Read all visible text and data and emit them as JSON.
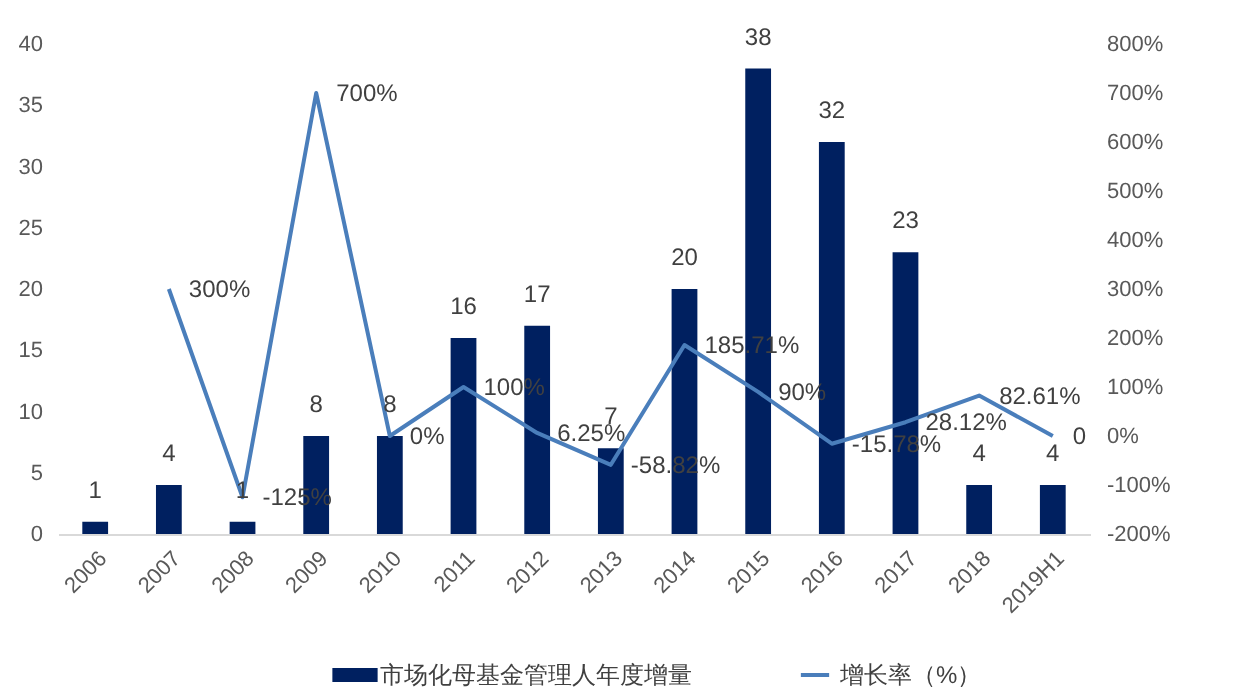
{
  "chart_data": {
    "type": "bar",
    "categories": [
      "2006",
      "2007",
      "2008",
      "2009",
      "2010",
      "2011",
      "2012",
      "2013",
      "2014",
      "2015",
      "2016",
      "2017",
      "2018",
      "2019H1"
    ],
    "series": [
      {
        "name": "市场化母基金管理人年度增量",
        "color": "#002060",
        "values": [
          1,
          4,
          1,
          8,
          8,
          16,
          17,
          7,
          20,
          38,
          32,
          23,
          4,
          4
        ]
      },
      {
        "name": "增长率（%）",
        "type": "line",
        "axis": "y2",
        "color": "#4a7ebb",
        "values": [
          null,
          300,
          -125,
          700,
          0,
          100,
          6.25,
          -58.82,
          185.71,
          90,
          -15.78,
          28.12,
          82.61,
          0
        ],
        "value_labels": [
          null,
          "300%",
          "-125%",
          "700%",
          "0%",
          "100%",
          "6.25%",
          "-58.82%",
          "185.71%",
          "90%",
          "-15.78%",
          "28.12%",
          "82.61%",
          "0"
        ]
      }
    ],
    "ylim": [
      0,
      40
    ],
    "yticks": [
      0,
      5,
      10,
      15,
      20,
      25,
      30,
      35,
      40
    ],
    "y2lim": [
      -200,
      800
    ],
    "y2ticks": [
      {
        "value": -200,
        "label": "-200%"
      },
      {
        "value": -100,
        "label": "-100%"
      },
      {
        "value": 0,
        "label": "0%"
      },
      {
        "value": 100,
        "label": "100%"
      },
      {
        "value": 200,
        "label": "200%"
      },
      {
        "value": 300,
        "label": "300%"
      },
      {
        "value": 400,
        "label": "400%"
      },
      {
        "value": 500,
        "label": "500%"
      },
      {
        "value": 600,
        "label": "600%"
      },
      {
        "value": 700,
        "label": "700%"
      },
      {
        "value": 800,
        "label": "800%"
      }
    ],
    "data_labels": true,
    "grid": false,
    "legend": "bottom",
    "marker": "none",
    "line_style": "solid"
  }
}
